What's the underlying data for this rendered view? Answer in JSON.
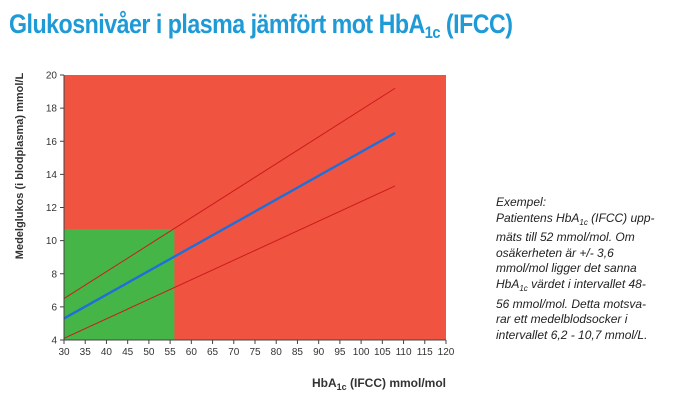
{
  "title_main": "Glukosnivåer i plasma jämfört mot HbA",
  "title_sub": "1c",
  "title_rest": " (IFCC)",
  "chart_data": {
    "type": "line",
    "title": "Glukosnivåer i plasma jämfört mot HbA1c (IFCC)",
    "xlabel": "HbA1c (IFCC) mmol/mol",
    "ylabel": "Medelglukos (i blodplasma) mmol/L",
    "xlim": [
      30,
      120
    ],
    "ylim": [
      4,
      20
    ],
    "xticks": [
      30,
      35,
      40,
      45,
      50,
      55,
      60,
      65,
      70,
      75,
      80,
      85,
      90,
      95,
      100,
      105,
      110,
      115,
      120
    ],
    "yticks": [
      4,
      6,
      8,
      10,
      12,
      14,
      16,
      18,
      20
    ],
    "grid": false,
    "background_color": "#f05440",
    "highlight_region": {
      "x": [
        30,
        56
      ],
      "y": [
        4,
        10.7
      ],
      "color": "#46b548"
    },
    "series": [
      {
        "role": "upper",
        "color": "#cc1b1b",
        "x": [
          30,
          108
        ],
        "y": [
          6.5,
          19.2
        ]
      },
      {
        "role": "mean",
        "color": "#1e6fd9",
        "x": [
          30,
          108
        ],
        "y": [
          5.3,
          16.5
        ]
      },
      {
        "role": "lower",
        "color": "#cc1b1b",
        "x": [
          30,
          108
        ],
        "y": [
          4.1,
          13.3
        ]
      }
    ]
  },
  "ylabel_text": "Medelglukos (i blodplasma) mmol/L",
  "xlabel_main": "HbA",
  "xlabel_sub": "1c",
  "xlabel_rest": " (IFCC) mmol/mol",
  "example": {
    "heading": "Exempel:",
    "l1a": "Patientens HbA",
    "l1sub": "1c",
    "l1b": " (IFCC) upp-",
    "l2": "mäts till 52 mmol/mol. Om",
    "l3": "osäkerheten är +/- 3,6",
    "l4": "mmol/mol ligger det sanna",
    "l5a": "HbA",
    "l5sub": "1c",
    "l5b": " värdet i intervallet 48-",
    "l6": "56 mmol/mol. Detta motsva-",
    "l7": "rar ett medelblodsocker i",
    "l8": "intervallet 6,2 - 10,7 mmol/L."
  }
}
